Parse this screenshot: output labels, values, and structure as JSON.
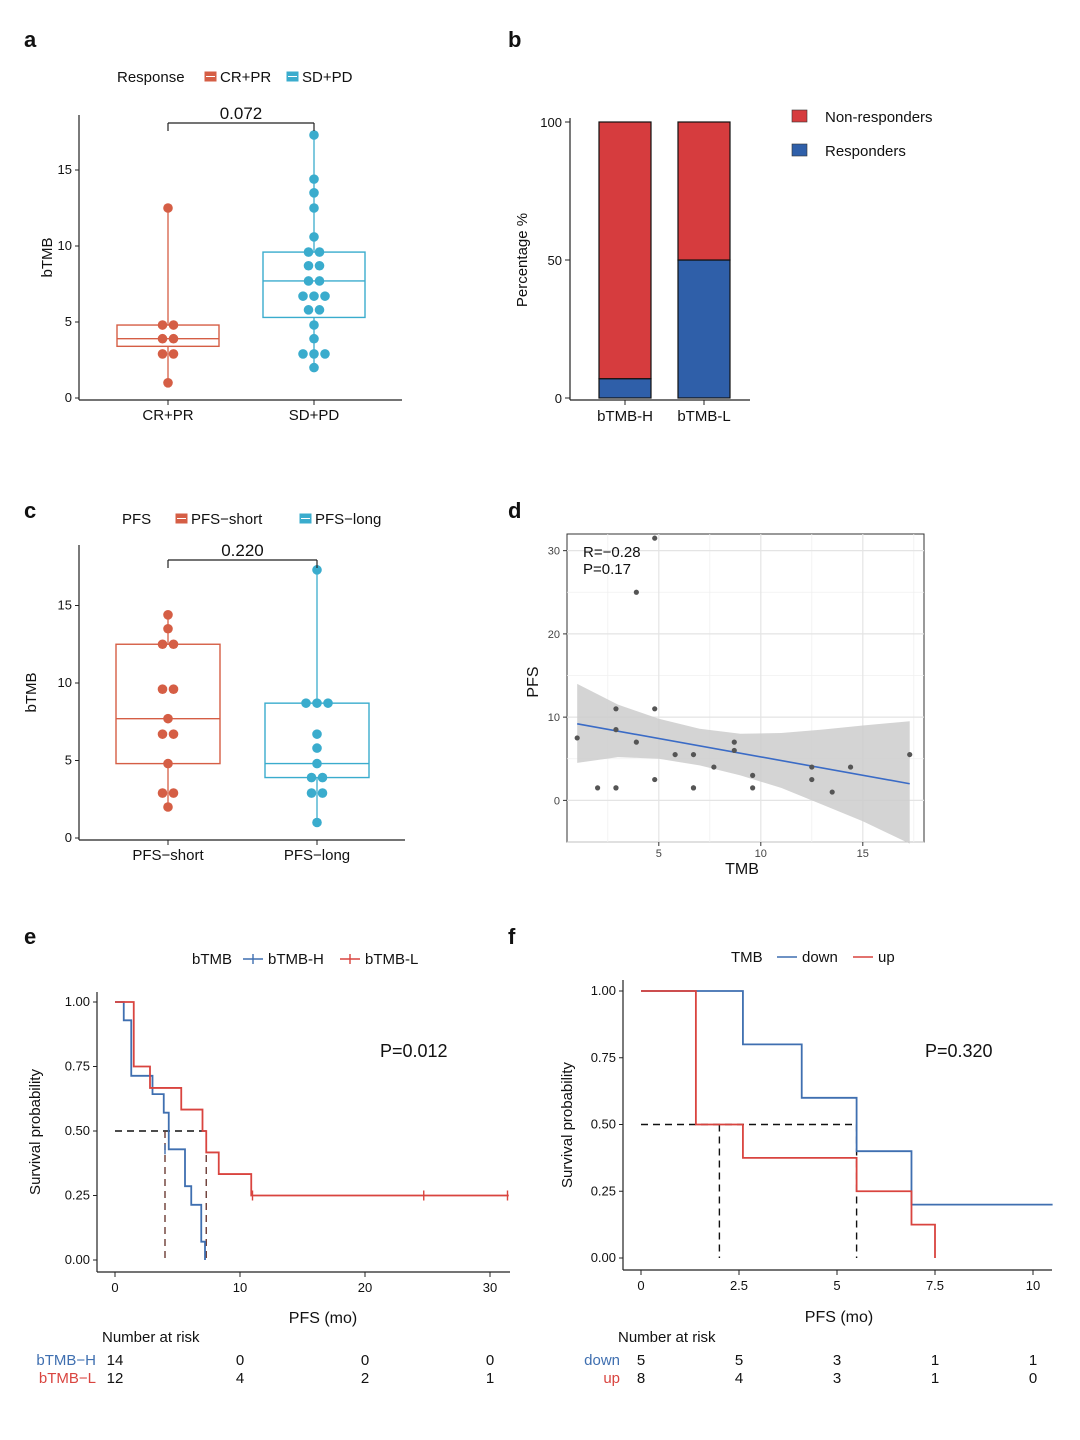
{
  "colors": {
    "red": "#d55e45",
    "teal": "#3aaccd",
    "bar_red": "#d63c3e",
    "bar_blue": "#2f5fa9",
    "km_blue": "#3f6fb0",
    "km_red": "#d9443f",
    "band": "#cccccc",
    "fit": "#3a6bc6",
    "grid": "#e4e4e4"
  },
  "chart_data": [
    {
      "panel": "a",
      "type": "box",
      "legend_title": "Response",
      "legend_items": [
        "CR+PR",
        "SD+PD"
      ],
      "categories": [
        "CR+PR",
        "SD+PD"
      ],
      "ylabel": "bTMB",
      "ylim": [
        0,
        18
      ],
      "yticks": [
        "0",
        "5",
        "10",
        "15"
      ],
      "pvalue": "0.072",
      "boxes": [
        {
          "q1": 3.4,
          "median": 3.9,
          "q3": 4.8,
          "min": 1,
          "max": 12.5
        },
        {
          "q1": 5.3,
          "median": 7.7,
          "q3": 9.6,
          "min": 2,
          "max": 17.3
        }
      ],
      "points": [
        [
          1,
          2.9,
          2.9,
          3.9,
          3.9,
          4.8,
          4.8,
          12.5
        ],
        [
          2,
          2.9,
          2.9,
          2.9,
          3.9,
          4.8,
          5.8,
          5.8,
          6.7,
          6.7,
          6.7,
          7.7,
          7.7,
          8.7,
          8.7,
          9.6,
          9.6,
          10.6,
          12.5,
          13.5,
          14.4,
          17.3
        ]
      ]
    },
    {
      "panel": "b",
      "type": "stacked_bar",
      "categories": [
        "bTMB-H",
        "bTMB-L"
      ],
      "ylabel": "Percentage %",
      "ylim": [
        0,
        100
      ],
      "yticks": [
        "0",
        "50",
        "100"
      ],
      "series": [
        {
          "name": "Responders",
          "values": [
            7,
            50
          ]
        },
        {
          "name": "Non-responders",
          "values": [
            93,
            50
          ]
        }
      ],
      "legend_items": [
        "Non-responders",
        "Responders"
      ]
    },
    {
      "panel": "c",
      "type": "box",
      "legend_title": "PFS",
      "legend_items": [
        "PFS−short",
        "PFS−long"
      ],
      "categories": [
        "PFS−short",
        "PFS−long"
      ],
      "ylabel": "bTMB",
      "ylim": [
        0,
        18
      ],
      "yticks": [
        "0",
        "5",
        "10",
        "15"
      ],
      "pvalue": "0.220",
      "boxes": [
        {
          "q1": 4.8,
          "median": 7.7,
          "q3": 12.5,
          "min": 2,
          "max": 14.4
        },
        {
          "q1": 3.9,
          "median": 4.8,
          "q3": 8.7,
          "min": 1,
          "max": 17.3
        }
      ],
      "points": [
        [
          2,
          2.9,
          2.9,
          4.8,
          6.7,
          6.7,
          7.7,
          9.6,
          9.6,
          12.5,
          12.5,
          13.5,
          14.4
        ],
        [
          1,
          2.9,
          2.9,
          3.9,
          3.9,
          4.8,
          5.8,
          6.7,
          8.7,
          8.7,
          8.7,
          17.3
        ]
      ]
    },
    {
      "panel": "d",
      "type": "scatter",
      "xlabel": "TMB",
      "ylabel": "PFS",
      "xlim": [
        0.5,
        18
      ],
      "ylim": [
        -5,
        32
      ],
      "xticks": [
        "5",
        "10",
        "15"
      ],
      "yticks": [
        "0",
        "10",
        "20",
        "30"
      ],
      "annotation_r": "R=−0.28",
      "annotation_p": "P=0.17",
      "points": [
        [
          1,
          7.5
        ],
        [
          2,
          1.5
        ],
        [
          2.9,
          1.5
        ],
        [
          2.9,
          1.5
        ],
        [
          2.9,
          8.5
        ],
        [
          2.9,
          11
        ],
        [
          3.9,
          7
        ],
        [
          3.9,
          25
        ],
        [
          4.8,
          2.5
        ],
        [
          4.8,
          11
        ],
        [
          4.8,
          31.5
        ],
        [
          5.8,
          5.5
        ],
        [
          6.7,
          1.5
        ],
        [
          6.7,
          1.5
        ],
        [
          6.7,
          5.5
        ],
        [
          7.7,
          4
        ],
        [
          8.7,
          6
        ],
        [
          8.7,
          7
        ],
        [
          9.6,
          1.5
        ],
        [
          9.6,
          3
        ],
        [
          12.5,
          2.5
        ],
        [
          12.5,
          4
        ],
        [
          13.5,
          1
        ],
        [
          14.4,
          4
        ],
        [
          17.3,
          5.5
        ]
      ],
      "fit": {
        "x": [
          1,
          17.3
        ],
        "y": [
          9.2,
          2
        ]
      },
      "band_upper": [
        [
          1,
          14
        ],
        [
          3,
          11.5
        ],
        [
          5,
          9.8
        ],
        [
          7,
          8.6
        ],
        [
          9,
          8
        ],
        [
          11,
          8.1
        ],
        [
          13,
          8.5
        ],
        [
          15,
          9
        ],
        [
          17.3,
          9.5
        ]
      ],
      "band_lower": [
        [
          1,
          4.5
        ],
        [
          3,
          5.2
        ],
        [
          5,
          5
        ],
        [
          7,
          4.2
        ],
        [
          9,
          3
        ],
        [
          11,
          1.5
        ],
        [
          13,
          -0.5
        ],
        [
          15,
          -2.5
        ],
        [
          17.3,
          -5.2
        ]
      ]
    },
    {
      "panel": "e",
      "type": "km",
      "legend_title": "bTMB",
      "legend_items": [
        "bTMB-H",
        "bTMB-L"
      ],
      "xlabel": "PFS (mo)",
      "ylabel": "Survival probability",
      "xlim": [
        0,
        31.5
      ],
      "ylim": [
        0,
        1
      ],
      "xticks": [
        "0",
        "10",
        "20",
        "30"
      ],
      "yticks": [
        "0.00",
        "0.25",
        "0.50",
        "0.75",
        "1.00"
      ],
      "pvalue": "P=0.012",
      "series": [
        {
          "name": "bTMB-H",
          "times": [
            0,
            0.7,
            1.3,
            2.6,
            3,
            3.9,
            4.3,
            5.4,
            5.6,
            6.1,
            6.9,
            7.2,
            7.2
          ],
          "surv": [
            1,
            0.929,
            0.714,
            0.714,
            0.643,
            0.571,
            0.429,
            0.429,
            0.286,
            0.214,
            0.071,
            0.071,
            0
          ]
        },
        {
          "name": "bTMB-L",
          "times": [
            0,
            1.4,
            1.5,
            2.8,
            5.3,
            7,
            7.3,
            8.3,
            10.9,
            31.5
          ],
          "surv": [
            1,
            1,
            0.75,
            0.667,
            0.583,
            0.5,
            0.417,
            0.333,
            0.25,
            0.25
          ]
        }
      ],
      "censor": [
        {
          "series": 0,
          "t": 4,
          "s": 0.429
        },
        {
          "series": 1,
          "t": 11,
          "s": 0.25
        },
        {
          "series": 1,
          "t": 24.7,
          "s": 0.25
        },
        {
          "series": 1,
          "t": 31.4,
          "s": 0.25
        }
      ],
      "medians": [
        4,
        7.3
      ],
      "risk_table": {
        "title": "Number at risk",
        "labels": [
          "bTMB−H",
          "bTMB−L"
        ],
        "times": [
          0,
          10,
          20,
          30
        ],
        "rows": [
          [
            "14",
            "0",
            "0",
            "0"
          ],
          [
            "12",
            "4",
            "2",
            "1"
          ]
        ]
      }
    },
    {
      "panel": "f",
      "type": "km",
      "legend_title": "TMB",
      "legend_items": [
        "down",
        "up"
      ],
      "xlabel": "PFS (mo)",
      "ylabel": "Survival probability",
      "xlim": [
        0,
        10.5
      ],
      "ylim": [
        0,
        1
      ],
      "xticks": [
        "0",
        "2.5",
        "5",
        "7.5",
        "10"
      ],
      "yticks": [
        "0.00",
        "0.25",
        "0.50",
        "0.75",
        "1.00"
      ],
      "pvalue": "P=0.320",
      "series": [
        {
          "name": "down",
          "times": [
            0,
            2.6,
            4.1,
            5.5,
            6.9,
            10.5
          ],
          "surv": [
            1,
            0.8,
            0.6,
            0.4,
            0.2,
            0.2
          ]
        },
        {
          "name": "up",
          "times": [
            0,
            1.4,
            2.6,
            5.5,
            6.9,
            7.5
          ],
          "surv": [
            1,
            0.5,
            0.375,
            0.25,
            0.125,
            0
          ]
        }
      ],
      "censor": [],
      "medians": [
        2,
        5.5
      ],
      "risk_table": {
        "title": "Number at risk",
        "labels": [
          "down",
          "up"
        ],
        "times": [
          0,
          2.5,
          5,
          7.5,
          10
        ],
        "rows": [
          [
            "5",
            "5",
            "3",
            "1",
            "1"
          ],
          [
            "8",
            "4",
            "3",
            "1",
            "0"
          ]
        ]
      }
    }
  ],
  "panel_labels": [
    "a",
    "b",
    "c",
    "d",
    "e",
    "f"
  ]
}
